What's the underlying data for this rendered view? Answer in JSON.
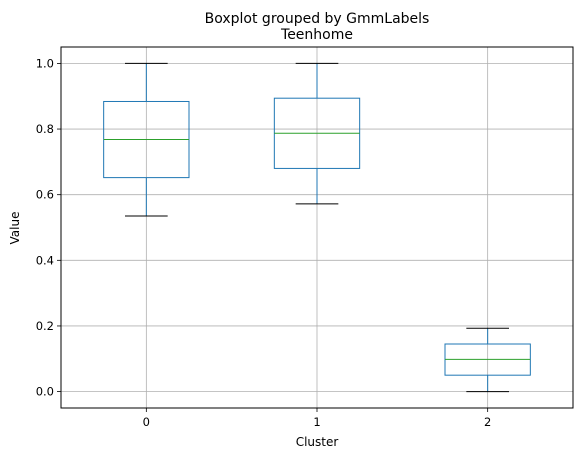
{
  "chart_data": {
    "type": "boxplot",
    "suptitle": "Boxplot grouped by GmmLabels",
    "title": "Teenhome",
    "xlabel": "Cluster",
    "ylabel": "Value",
    "categories": [
      "0",
      "1",
      "2"
    ],
    "ylim": [
      -0.05,
      1.05
    ],
    "yticks": [
      0.0,
      0.2,
      0.4,
      0.6,
      0.8,
      1.0
    ],
    "ytick_labels": [
      "0.0",
      "0.2",
      "0.4",
      "0.6",
      "0.8",
      "1.0"
    ],
    "grid": true,
    "boxes": [
      {
        "category": "0",
        "whisker_low": 0.535,
        "q1": 0.652,
        "median": 0.768,
        "q3": 0.884,
        "whisker_high": 1.0
      },
      {
        "category": "1",
        "whisker_low": 0.572,
        "q1": 0.68,
        "median": 0.787,
        "q3": 0.894,
        "whisker_high": 1.0
      },
      {
        "category": "2",
        "whisker_low": 0.0,
        "q1": 0.05,
        "median": 0.098,
        "q3": 0.145,
        "whisker_high": 0.193
      }
    ],
    "colors": {
      "box": "#1f77b4",
      "median": "#2ca02c",
      "cap": "#000000",
      "grid": "#b0b0b0",
      "axis": "#000000"
    }
  }
}
